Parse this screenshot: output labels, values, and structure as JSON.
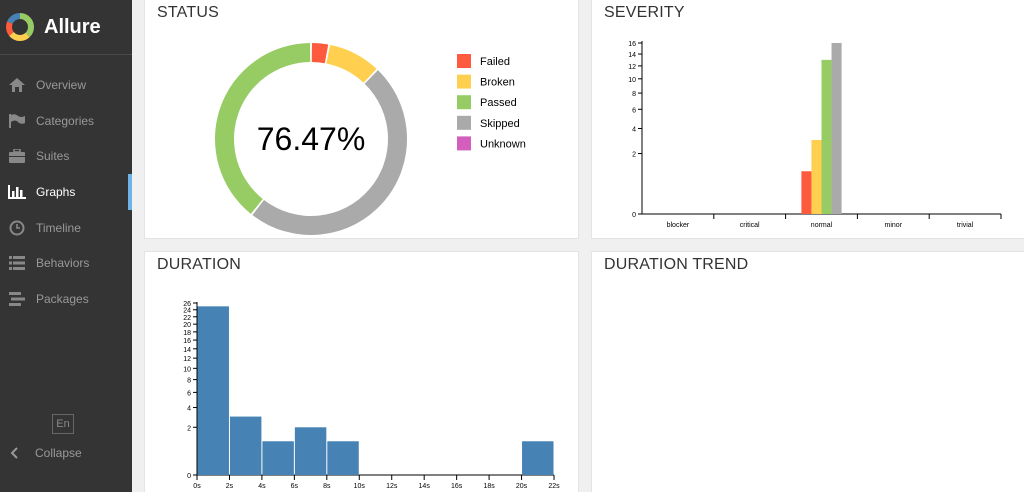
{
  "sidebar": {
    "brand": "Allure",
    "items": [
      {
        "label": "Overview",
        "icon": "home-icon",
        "active": false
      },
      {
        "label": "Categories",
        "icon": "flag-icon",
        "active": false
      },
      {
        "label": "Suites",
        "icon": "briefcase-icon",
        "active": false
      },
      {
        "label": "Graphs",
        "icon": "bar-chart-icon",
        "active": true
      },
      {
        "label": "Timeline",
        "icon": "clock-icon",
        "active": false
      },
      {
        "label": "Behaviors",
        "icon": "list-icon",
        "active": false
      },
      {
        "label": "Packages",
        "icon": "packages-icon",
        "active": false
      }
    ],
    "language": "En",
    "collapse_label": "Collapse"
  },
  "widgets": {
    "status": {
      "title": "STATUS",
      "center_label": "76.47%"
    },
    "severity": {
      "title": "SEVERITY"
    },
    "duration": {
      "title": "DURATION"
    },
    "duration_trend": {
      "title": "DURATION TREND"
    }
  },
  "colors": {
    "failed": "#fd5a3e",
    "broken": "#ffd050",
    "passed": "#97cc64",
    "skipped": "#aaaaaa",
    "unknown": "#d35ebe",
    "histogram": "#4682b4"
  },
  "chart_data": [
    {
      "type": "pie",
      "title": "STATUS",
      "center_label": "76.47%",
      "legend": [
        "Failed",
        "Broken",
        "Passed",
        "Skipped",
        "Unknown"
      ],
      "slices": [
        {
          "name": "Failed",
          "value": 1,
          "color": "#fd5a3e"
        },
        {
          "name": "Broken",
          "value": 3,
          "color": "#ffd050"
        },
        {
          "name": "Skipped",
          "value": 16,
          "color": "#aaaaaa"
        },
        {
          "name": "Passed",
          "value": 13,
          "color": "#97cc64"
        },
        {
          "name": "Unknown",
          "value": 0,
          "color": "#d35ebe"
        }
      ]
    },
    {
      "type": "bar",
      "title": "SEVERITY",
      "categories": [
        "blocker",
        "critical",
        "normal",
        "minor",
        "trivial"
      ],
      "y_ticks": [
        0,
        2,
        4,
        6,
        8,
        10,
        12,
        14,
        16
      ],
      "ylim": [
        0,
        16
      ],
      "y_scale": "sqrt",
      "series": [
        {
          "name": "Failed",
          "color": "#fd5a3e",
          "values": [
            0,
            0,
            1,
            0,
            0
          ]
        },
        {
          "name": "Broken",
          "color": "#ffd050",
          "values": [
            0,
            0,
            3,
            0,
            0
          ]
        },
        {
          "name": "Passed",
          "color": "#97cc64",
          "values": [
            0,
            0,
            13,
            0,
            0
          ]
        },
        {
          "name": "Skipped",
          "color": "#aaaaaa",
          "values": [
            0,
            0,
            16,
            0,
            0
          ]
        }
      ]
    },
    {
      "type": "bar",
      "title": "DURATION",
      "x_ticks": [
        "0s",
        "2s",
        "4s",
        "6s",
        "8s",
        "10s",
        "12s",
        "14s",
        "16s",
        "18s",
        "20s",
        "22s"
      ],
      "xlim": [
        0,
        22
      ],
      "y_ticks": [
        0,
        2,
        4,
        6,
        8,
        10,
        12,
        14,
        16,
        18,
        20,
        22,
        24,
        26
      ],
      "ylim": [
        0,
        26
      ],
      "y_scale": "sqrt",
      "bins": [
        {
          "x0": 0,
          "x1": 2,
          "value": 25
        },
        {
          "x0": 2,
          "x1": 4,
          "value": 3
        },
        {
          "x0": 4,
          "x1": 6,
          "value": 1
        },
        {
          "x0": 6,
          "x1": 8,
          "value": 2
        },
        {
          "x0": 8,
          "x1": 10,
          "value": 1
        },
        {
          "x0": 20,
          "x1": 22,
          "value": 1
        }
      ]
    }
  ]
}
